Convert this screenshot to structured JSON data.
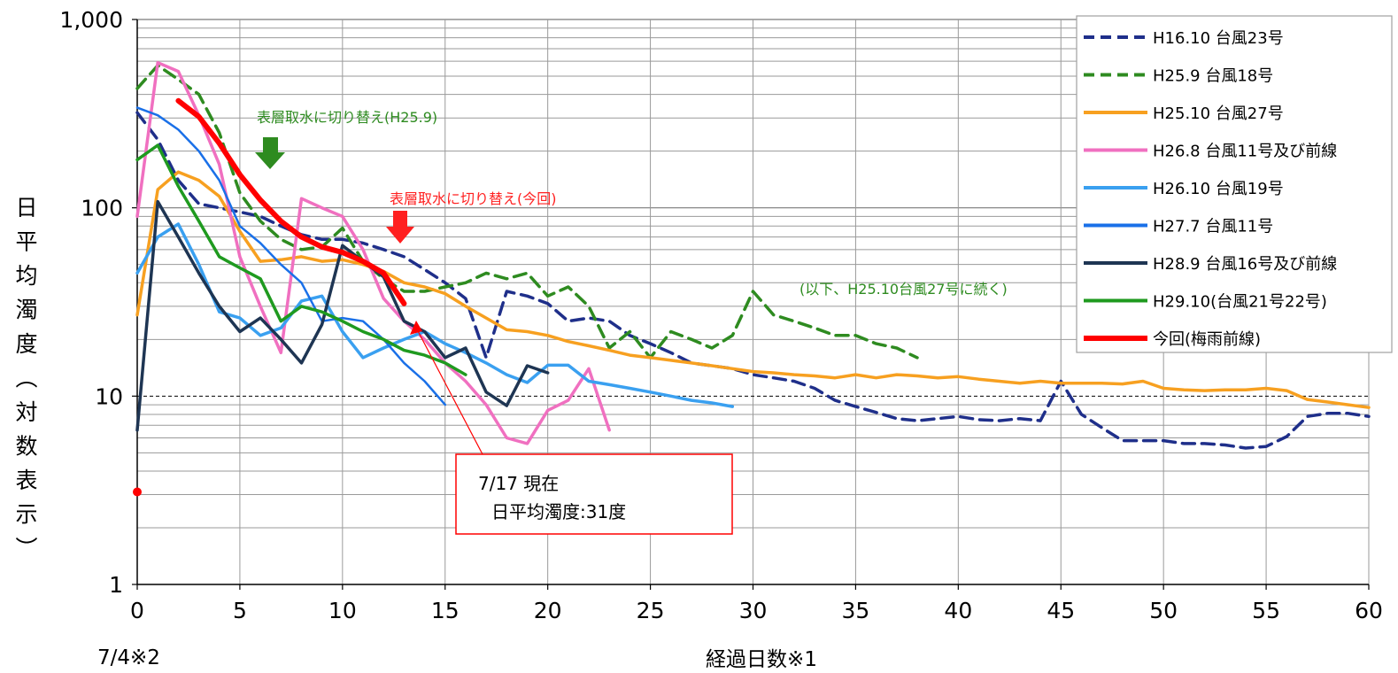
{
  "chart_data": {
    "type": "line",
    "xlabel": "経過日数※1",
    "ylabel": "日平均濁度(対数表示)",
    "x_start_label": "7/4※2",
    "xlim": [
      0,
      60
    ],
    "ylim": [
      1,
      1000
    ],
    "y_scale": "log",
    "x_ticks": [
      0,
      5,
      10,
      15,
      20,
      25,
      30,
      35,
      40,
      45,
      50,
      55,
      60
    ],
    "y_ticks": [
      {
        "v": 1,
        "label": "1"
      },
      {
        "v": 10,
        "label": "10"
      },
      {
        "v": 100,
        "label": "100"
      },
      {
        "v": 1000,
        "label": "1,000"
      }
    ],
    "reference_line": 10,
    "legend_position": "top-right",
    "annotations": {
      "switch_h25": "表層取水に切り替え(H25.9)",
      "switch_now": "表層取水に切り替え(今回)",
      "continue_note": "(以下、H25.10台風27号に続く)",
      "callout_line1": "7/17 現在",
      "callout_line2": "日平均濁度:31度"
    },
    "current_marker": {
      "x": 0,
      "y": 3.1,
      "color": "#ff0000"
    },
    "series": [
      {
        "name": "H16.10 台風23号",
        "color": "#1f2f8a",
        "dash": true,
        "width": 3.5,
        "x": [
          0,
          1,
          2,
          3,
          4,
          5,
          6,
          7,
          8,
          9,
          10,
          11,
          12,
          13,
          14,
          15,
          16,
          17,
          18,
          19,
          20,
          21,
          22,
          23,
          24,
          25,
          26,
          27,
          28,
          29,
          30,
          31,
          32,
          33,
          34,
          35,
          36,
          37,
          38,
          39,
          40,
          41,
          42,
          43,
          44,
          45,
          46,
          47,
          48,
          49,
          50,
          51,
          52,
          53,
          54,
          55,
          56,
          57,
          58,
          59,
          60
        ],
        "y": [
          320,
          230,
          140,
          105,
          100,
          95,
          90,
          80,
          72,
          68,
          68,
          65,
          60,
          55,
          47,
          40,
          33,
          16,
          36,
          34,
          31,
          25,
          26,
          25,
          21,
          19,
          17,
          15,
          14.5,
          14,
          13,
          12.5,
          12,
          11,
          9.5,
          8.8,
          8.2,
          7.6,
          7.4,
          7.6,
          7.8,
          7.5,
          7.4,
          7.6,
          7.4,
          12,
          8,
          6.8,
          5.8,
          5.8,
          5.8,
          5.6,
          5.6,
          5.5,
          5.3,
          5.4,
          6.1,
          7.8,
          8.1,
          8.1,
          7.8
        ]
      },
      {
        "name": "H25.9 台風18号",
        "color": "#2e8b20",
        "dash": true,
        "width": 3.5,
        "x": [
          0,
          1,
          2,
          3,
          4,
          5,
          6,
          7,
          8,
          9,
          10,
          11,
          12,
          13,
          14,
          15,
          16,
          17,
          18,
          19,
          20,
          21,
          22,
          23,
          24,
          25,
          26,
          27,
          28,
          29,
          30,
          31,
          32,
          33,
          34,
          35,
          36,
          37,
          38
        ],
        "y": [
          430,
          570,
          480,
          400,
          250,
          120,
          85,
          68,
          60,
          62,
          78,
          52,
          42,
          36,
          36,
          38,
          40,
          45,
          42,
          45,
          34,
          38,
          30,
          18,
          22,
          16,
          22,
          20,
          18,
          21,
          36,
          27,
          25,
          23,
          21,
          21,
          19,
          18,
          16
        ]
      },
      {
        "name": "H25.10 台風27号",
        "color": "#f7a020",
        "dash": false,
        "width": 3.5,
        "x": [
          0,
          1,
          2,
          3,
          4,
          5,
          6,
          7,
          8,
          9,
          10,
          11,
          12,
          13,
          14,
          15,
          16,
          17,
          18,
          19,
          20,
          21,
          22,
          23,
          24,
          25,
          26,
          27,
          28,
          29,
          30,
          31,
          32,
          33,
          34,
          35,
          36,
          37,
          38,
          39,
          40,
          41,
          42,
          43,
          44,
          45,
          46,
          47,
          48,
          49,
          50,
          51,
          52,
          53,
          54,
          55,
          56,
          57,
          58,
          59,
          60
        ],
        "y": [
          27,
          125,
          155,
          140,
          115,
          75,
          52,
          53,
          55,
          52,
          53,
          50,
          46,
          40,
          38,
          35,
          30,
          26,
          22.5,
          22,
          21,
          19.5,
          18.5,
          17.5,
          16.5,
          16,
          15.5,
          15,
          14.5,
          14,
          13.5,
          13.3,
          13,
          12.8,
          12.5,
          13,
          12.5,
          13,
          12.8,
          12.5,
          12.7,
          12.3,
          12,
          11.7,
          12,
          11.7,
          11.7,
          11.7,
          11.6,
          12,
          11,
          10.8,
          10.7,
          10.8,
          10.8,
          11,
          10.7,
          9.6,
          9.3,
          9,
          8.7
        ]
      },
      {
        "name": "H26.8 台風11号及び前線",
        "color": "#f070c0",
        "dash": false,
        "width": 3.5,
        "x": [
          0,
          1,
          2,
          3,
          4,
          5,
          6,
          7,
          8,
          9,
          10,
          11,
          12,
          13,
          14,
          15,
          16,
          17,
          18,
          19,
          20,
          21,
          22,
          23
        ],
        "y": [
          90,
          590,
          530,
          310,
          170,
          55,
          30,
          17,
          112,
          100,
          90,
          60,
          33,
          25,
          20,
          15,
          12,
          9,
          6,
          5.6,
          8.4,
          9.5,
          14,
          6.6
        ]
      },
      {
        "name": "H26.10 台風19号",
        "color": "#3aa0f0",
        "dash": false,
        "width": 3.5,
        "x": [
          0,
          1,
          2,
          3,
          4,
          5,
          6,
          7,
          8,
          9,
          10,
          11,
          12,
          13,
          14,
          15,
          16,
          17,
          18,
          19,
          20,
          21,
          22,
          23,
          24,
          25,
          26,
          27,
          28,
          29
        ],
        "y": [
          45,
          70,
          82,
          50,
          28,
          26,
          21,
          23,
          32,
          34,
          22,
          16,
          18,
          20,
          22,
          19,
          17,
          15,
          13,
          11.8,
          14.6,
          14.6,
          12,
          11.5,
          11,
          10.5,
          10,
          9.5,
          9.2,
          8.8
        ]
      },
      {
        "name": "H27.7 台風11号",
        "color": "#1a70e8",
        "dash": false,
        "width": 2.5,
        "x": [
          0,
          1,
          2,
          3,
          4,
          5,
          6,
          7,
          8,
          9,
          10,
          11,
          12,
          13,
          14,
          15
        ],
        "y": [
          340,
          310,
          260,
          200,
          140,
          80,
          65,
          50,
          40,
          25,
          26,
          25,
          20,
          15,
          12,
          9
        ]
      },
      {
        "name": "H28.9 台風16号及び前線",
        "color": "#1e3553",
        "dash": false,
        "width": 3.5,
        "x": [
          0,
          1,
          2,
          3,
          4,
          5,
          6,
          7,
          8,
          9,
          10,
          11,
          12,
          13,
          14,
          15,
          16,
          17,
          18,
          19,
          20
        ],
        "y": [
          6.6,
          108,
          70,
          45,
          30,
          22,
          26,
          20,
          15,
          24,
          63,
          52,
          43,
          25,
          22,
          16,
          18,
          10.5,
          8.9,
          14.5,
          13.3
        ]
      },
      {
        "name": "H29.10(台風21号22号)",
        "color": "#1f9a1f",
        "dash": false,
        "width": 3.5,
        "x": [
          0,
          1,
          2,
          3,
          4,
          5,
          6,
          7,
          8,
          9,
          10,
          11,
          12,
          13,
          14,
          15,
          16
        ],
        "y": [
          180,
          215,
          130,
          85,
          55,
          48,
          42,
          25,
          30,
          28,
          25,
          22,
          20,
          17.5,
          16.5,
          15,
          13
        ]
      },
      {
        "name": "今回(梅雨前線)",
        "color": "#ff0000",
        "dash": false,
        "width": 6,
        "x": [
          2,
          3,
          4,
          5,
          6,
          7,
          8,
          9,
          10,
          11,
          12,
          13
        ],
        "y": [
          370,
          305,
          220,
          150,
          110,
          85,
          70,
          62,
          58,
          52,
          45,
          31
        ]
      }
    ]
  }
}
